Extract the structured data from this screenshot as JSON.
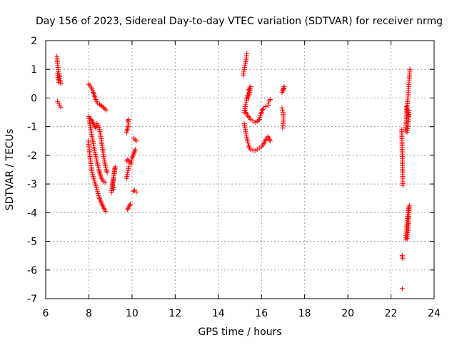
{
  "chart_data": {
    "type": "scatter",
    "title": "Day 156 of 2023, Sidereal Day-to-day VTEC variation (SDTVAR) for receiver nrmg",
    "xlabel": "GPS time / hours",
    "ylabel": "SDTVAR / TECUs",
    "xlim": [
      6,
      24
    ],
    "ylim": [
      -7,
      2
    ],
    "x_ticks": [
      "6",
      "8",
      "10",
      "12",
      "14",
      "16",
      "18",
      "20",
      "22",
      "24"
    ],
    "y_ticks": [
      "2",
      "1",
      "0",
      "-1",
      "-2",
      "-3",
      "-4",
      "-5",
      "-6",
      "-7"
    ],
    "grid": true,
    "marker": "plus",
    "marker_color": "#ff0000",
    "series": [
      {
        "tracks": [
          [
            [
              6.52,
              1.45
            ],
            [
              6.55,
              1.2
            ],
            [
              6.58,
              1.0
            ],
            [
              6.61,
              0.85
            ],
            [
              6.64,
              0.75
            ],
            [
              6.67,
              0.62
            ],
            [
              6.7,
              0.5
            ]
          ],
          [
            [
              6.55,
              0.85
            ],
            [
              6.58,
              0.65
            ],
            [
              6.6,
              0.55
            ]
          ],
          [
            [
              6.55,
              -0.12
            ],
            [
              6.6,
              -0.18
            ],
            [
              6.65,
              -0.25
            ],
            [
              6.7,
              -0.32
            ]
          ],
          [
            [
              7.98,
              0.48
            ],
            [
              8.05,
              0.45
            ],
            [
              8.1,
              0.38
            ],
            [
              8.18,
              0.25
            ],
            [
              8.25,
              0.1
            ],
            [
              8.32,
              -0.05
            ],
            [
              8.4,
              -0.18
            ],
            [
              8.5,
              -0.22
            ],
            [
              8.6,
              -0.28
            ],
            [
              8.7,
              -0.35
            ],
            [
              8.8,
              -0.42
            ]
          ],
          [
            [
              7.98,
              -1.5
            ],
            [
              8.02,
              -1.8
            ],
            [
              8.06,
              -2.1
            ],
            [
              8.1,
              -2.35
            ],
            [
              8.15,
              -2.6
            ],
            [
              8.22,
              -2.8
            ],
            [
              8.3,
              -3.0
            ],
            [
              8.38,
              -3.2
            ],
            [
              8.45,
              -3.4
            ],
            [
              8.52,
              -3.55
            ],
            [
              8.6,
              -3.7
            ],
            [
              8.7,
              -3.85
            ],
            [
              8.78,
              -3.95
            ]
          ],
          [
            [
              8.0,
              -0.65
            ],
            [
              8.05,
              -0.9
            ],
            [
              8.1,
              -1.15
            ],
            [
              8.16,
              -1.4
            ],
            [
              8.22,
              -1.65
            ],
            [
              8.28,
              -1.9
            ],
            [
              8.34,
              -2.1
            ],
            [
              8.4,
              -2.3
            ],
            [
              8.46,
              -2.5
            ],
            [
              8.52,
              -2.65
            ],
            [
              8.58,
              -2.8
            ],
            [
              8.66,
              -2.9
            ],
            [
              8.75,
              -2.95
            ]
          ],
          [
            [
              8.05,
              -0.7
            ],
            [
              8.15,
              -0.8
            ],
            [
              8.25,
              -0.95
            ],
            [
              8.32,
              -1.05
            ],
            [
              8.38,
              -0.9
            ],
            [
              8.45,
              -0.95
            ],
            [
              8.5,
              -1.1
            ],
            [
              8.55,
              -1.35
            ],
            [
              8.6,
              -1.6
            ],
            [
              8.65,
              -1.85
            ],
            [
              8.7,
              -2.1
            ],
            [
              8.75,
              -2.3
            ],
            [
              8.8,
              -2.5
            ],
            [
              8.85,
              -2.6
            ]
          ],
          [
            [
              9.05,
              -3.3
            ],
            [
              9.08,
              -3.1
            ],
            [
              9.12,
              -2.9
            ],
            [
              9.16,
              -2.7
            ],
            [
              9.2,
              -2.5
            ],
            [
              9.22,
              -2.4
            ],
            [
              9.1,
              -3.0
            ],
            [
              9.15,
              -3.2
            ]
          ],
          [
            [
              9.78,
              -3.9
            ],
            [
              9.85,
              -3.8
            ],
            [
              9.92,
              -3.7
            ]
          ],
          [
            [
              9.8,
              -0.8
            ],
            [
              9.84,
              -0.75
            ],
            [
              9.82,
              -1.0
            ],
            [
              9.78,
              -1.1
            ],
            [
              9.75,
              -1.2
            ]
          ],
          [
            [
              9.75,
              -2.2
            ],
            [
              9.8,
              -2.15
            ],
            [
              9.85,
              -2.2
            ],
            [
              9.9,
              -2.25
            ],
            [
              9.95,
              -2.3
            ],
            [
              10.0,
              -2.1
            ],
            [
              10.05,
              -2.0
            ],
            [
              10.1,
              -1.9
            ],
            [
              10.15,
              -1.8
            ]
          ],
          [
            [
              9.75,
              -2.8
            ],
            [
              9.8,
              -2.6
            ],
            [
              9.85,
              -2.4
            ]
          ],
          [
            [
              10.08,
              -1.4
            ],
            [
              10.14,
              -1.45
            ],
            [
              10.2,
              -1.5
            ]
          ],
          [
            [
              10.05,
              -3.25
            ],
            [
              10.12,
              -3.22
            ],
            [
              10.2,
              -3.28
            ]
          ],
          [
            [
              15.15,
              0.8
            ],
            [
              15.2,
              1.0
            ],
            [
              15.25,
              1.2
            ],
            [
              15.3,
              1.4
            ],
            [
              15.32,
              1.55
            ]
          ],
          [
            [
              15.2,
              -0.5
            ],
            [
              15.25,
              -0.3
            ],
            [
              15.3,
              -0.1
            ],
            [
              15.35,
              0.1
            ],
            [
              15.4,
              0.25
            ],
            [
              15.45,
              0.35
            ],
            [
              15.5,
              0.4
            ],
            [
              15.45,
              0.2
            ],
            [
              15.4,
              0.0
            ]
          ],
          [
            [
              15.2,
              -0.9
            ],
            [
              15.25,
              -1.1
            ],
            [
              15.3,
              -1.3
            ],
            [
              15.35,
              -1.5
            ],
            [
              15.4,
              -1.65
            ],
            [
              15.45,
              -1.75
            ],
            [
              15.5,
              -1.8
            ],
            [
              15.6,
              -1.82
            ],
            [
              15.7,
              -1.83
            ],
            [
              15.8,
              -1.8
            ],
            [
              15.9,
              -1.75
            ],
            [
              16.0,
              -1.7
            ],
            [
              16.1,
              -1.6
            ],
            [
              16.2,
              -1.45
            ],
            [
              16.3,
              -1.35
            ],
            [
              16.35,
              -1.4
            ],
            [
              16.4,
              -1.5
            ]
          ],
          [
            [
              15.25,
              -0.45
            ],
            [
              15.3,
              -0.55
            ],
            [
              15.4,
              -0.65
            ],
            [
              15.5,
              -0.75
            ],
            [
              15.6,
              -0.8
            ],
            [
              15.7,
              -0.85
            ],
            [
              15.8,
              -0.82
            ],
            [
              15.9,
              -0.75
            ],
            [
              15.95,
              -0.6
            ],
            [
              16.0,
              -0.5
            ],
            [
              16.05,
              -0.4
            ],
            [
              16.1,
              -0.35
            ],
            [
              16.2,
              -0.3
            ],
            [
              16.3,
              -0.25
            ],
            [
              16.35,
              -0.1
            ],
            [
              16.4,
              -0.05
            ]
          ],
          [
            [
              16.95,
              0.2
            ],
            [
              17.0,
              0.3
            ],
            [
              17.05,
              0.4
            ],
            [
              17.02,
              0.25
            ]
          ],
          [
            [
              16.95,
              -0.35
            ],
            [
              17.0,
              -0.5
            ],
            [
              17.02,
              -0.7
            ],
            [
              17.0,
              -0.9
            ],
            [
              16.98,
              -1.05
            ]
          ],
          [
            [
              22.5,
              -1.1
            ],
            [
              22.55,
              -3.05
            ]
          ],
          [
            [
              22.52,
              -5.5
            ],
            [
              22.54,
              -5.6
            ]
          ],
          [
            [
              22.52,
              -6.65
            ]
          ],
          [
            [
              22.68,
              -1.15
            ],
            [
              22.7,
              -0.9
            ],
            [
              22.72,
              -0.6
            ],
            [
              22.74,
              -0.4
            ],
            [
              22.76,
              -0.2
            ],
            [
              22.78,
              0.0
            ],
            [
              22.8,
              0.2
            ],
            [
              22.82,
              0.4
            ],
            [
              22.84,
              0.6
            ],
            [
              22.86,
              0.8
            ],
            [
              22.88,
              1.0
            ]
          ],
          [
            [
              22.72,
              -0.3
            ],
            [
              22.76,
              -0.5
            ],
            [
              22.8,
              -0.65
            ],
            [
              22.84,
              -0.45
            ],
            [
              22.78,
              -1.0
            ],
            [
              22.74,
              -1.2
            ]
          ],
          [
            [
              22.68,
              -4.95
            ],
            [
              22.7,
              -4.8
            ],
            [
              22.72,
              -4.6
            ],
            [
              22.74,
              -4.4
            ],
            [
              22.76,
              -4.2
            ],
            [
              22.78,
              -4.0
            ],
            [
              22.82,
              -3.85
            ],
            [
              22.85,
              -3.75
            ],
            [
              22.8,
              -4.5
            ],
            [
              22.75,
              -4.9
            ]
          ]
        ]
      }
    ]
  }
}
